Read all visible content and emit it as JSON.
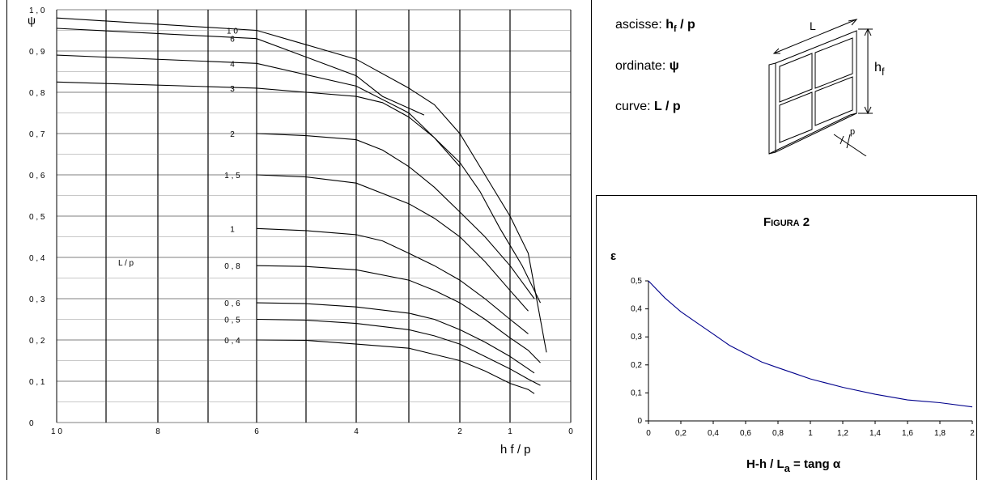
{
  "chart_data": [
    {
      "type": "line",
      "xlabel": "h f / p",
      "ylabel": "ψ",
      "x_tick_labels": [
        "1 0",
        "8",
        "6",
        "4",
        "2",
        "1",
        "0"
      ],
      "x_ticks": [
        10,
        8,
        6,
        4,
        2,
        1,
        0
      ],
      "y_tick_labels": [
        "0",
        "0 , 1",
        "0 , 2",
        "0 , 3",
        "0 , 4",
        "0 , 5",
        "0 , 6",
        "0 , 7",
        "0 , 8",
        "0 , 9",
        "1 , 0"
      ],
      "y_ticks": [
        0,
        0.1,
        0.2,
        0.3,
        0.4,
        0.5,
        0.6,
        0.7,
        0.8,
        0.9,
        1.0
      ],
      "ylim": [
        0,
        1.0
      ],
      "grid": true,
      "inner_label": "L / p",
      "series": [
        {
          "name": "1 0",
          "points": [
            [
              10,
              0.98
            ],
            [
              6,
              0.95
            ],
            [
              4,
              0.88
            ],
            [
              3,
              0.81
            ],
            [
              2.5,
              0.77
            ],
            [
              2,
              0.7
            ],
            [
              1.5,
              0.6
            ],
            [
              1,
              0.5
            ],
            [
              0.7,
              0.41
            ],
            [
              0.4,
              0.17
            ]
          ]
        },
        {
          "name": "6",
          "points": [
            [
              10,
              0.955
            ],
            [
              6,
              0.93
            ],
            [
              4,
              0.84
            ],
            [
              3.5,
              0.79
            ],
            [
              2.7,
              0.745
            ]
          ]
        },
        {
          "name": "4",
          "points": [
            [
              10,
              0.89
            ],
            [
              6,
              0.87
            ],
            [
              4,
              0.815
            ],
            [
              3,
              0.75
            ],
            [
              2.5,
              0.69
            ],
            [
              2,
              0.63
            ],
            [
              1.6,
              0.56
            ],
            [
              1.2,
              0.47
            ],
            [
              0.8,
              0.38
            ],
            [
              0.5,
              0.29
            ]
          ]
        },
        {
          "name": "3",
          "points": [
            [
              10,
              0.825
            ],
            [
              6,
              0.81
            ],
            [
              5,
              0.8
            ],
            [
              4,
              0.79
            ],
            [
              3.5,
              0.775
            ],
            [
              3,
              0.74
            ],
            [
              2.5,
              0.69
            ],
            [
              2,
              0.62
            ]
          ]
        },
        {
          "name": "2",
          "points": [
            [
              6,
              0.7
            ],
            [
              5,
              0.695
            ],
            [
              4,
              0.685
            ],
            [
              3.5,
              0.66
            ],
            [
              3,
              0.62
            ],
            [
              2.5,
              0.57
            ],
            [
              2,
              0.51
            ],
            [
              1.5,
              0.45
            ],
            [
              1,
              0.38
            ],
            [
              0.6,
              0.3
            ]
          ]
        },
        {
          "name": "1 , 5",
          "points": [
            [
              6,
              0.6
            ],
            [
              5,
              0.595
            ],
            [
              4,
              0.58
            ],
            [
              3,
              0.53
            ],
            [
              2.5,
              0.495
            ],
            [
              2,
              0.45
            ],
            [
              1.5,
              0.39
            ],
            [
              1,
              0.32
            ],
            [
              0.7,
              0.27
            ]
          ]
        },
        {
          "name": "1",
          "points": [
            [
              6,
              0.47
            ],
            [
              5,
              0.465
            ],
            [
              4,
              0.455
            ],
            [
              3.5,
              0.44
            ],
            [
              3,
              0.41
            ],
            [
              2.5,
              0.38
            ],
            [
              2,
              0.345
            ],
            [
              1.5,
              0.3
            ],
            [
              1,
              0.25
            ],
            [
              0.7,
              0.215
            ]
          ]
        },
        {
          "name": "0 , 8",
          "points": [
            [
              6,
              0.38
            ],
            [
              5,
              0.378
            ],
            [
              4,
              0.37
            ],
            [
              3,
              0.345
            ],
            [
              2.5,
              0.32
            ],
            [
              2,
              0.29
            ],
            [
              1.5,
              0.25
            ],
            [
              1,
              0.205
            ],
            [
              0.7,
              0.175
            ],
            [
              0.5,
              0.145
            ]
          ]
        },
        {
          "name": "0 , 6",
          "points": [
            [
              6,
              0.29
            ],
            [
              5,
              0.288
            ],
            [
              4,
              0.28
            ],
            [
              3,
              0.265
            ],
            [
              2.5,
              0.25
            ],
            [
              2,
              0.225
            ],
            [
              1.5,
              0.195
            ],
            [
              1,
              0.16
            ],
            [
              0.8,
              0.14
            ],
            [
              0.6,
              0.12
            ]
          ]
        },
        {
          "name": "0 , 5",
          "points": [
            [
              6,
              0.25
            ],
            [
              5,
              0.248
            ],
            [
              4,
              0.24
            ],
            [
              3,
              0.225
            ],
            [
              2.5,
              0.21
            ],
            [
              2,
              0.19
            ],
            [
              1.5,
              0.16
            ],
            [
              1,
              0.13
            ],
            [
              0.7,
              0.105
            ],
            [
              0.5,
              0.09
            ]
          ]
        },
        {
          "name": "0 , 4",
          "points": [
            [
              6,
              0.2
            ],
            [
              5,
              0.199
            ],
            [
              4,
              0.19
            ],
            [
              3,
              0.18
            ],
            [
              2.5,
              0.165
            ],
            [
              2,
              0.15
            ],
            [
              1.5,
              0.125
            ],
            [
              1,
              0.095
            ],
            [
              0.7,
              0.08
            ],
            [
              0.6,
              0.07
            ]
          ]
        }
      ]
    },
    {
      "type": "line",
      "title": "Figura 2",
      "ylabel": "ε",
      "xlabel_text": "H-h / L",
      "xlabel_sub": "a",
      "xlabel_tail": " = tang α",
      "xlim": [
        0,
        2
      ],
      "ylim": [
        0,
        0.5
      ],
      "x_tick_labels": [
        "0",
        "0,2",
        "0,4",
        "0,6",
        "0,8",
        "1",
        "1,2",
        "1,4",
        "1,6",
        "1,8",
        "2"
      ],
      "y_tick_labels": [
        "0",
        "0,1",
        "0,2",
        "0,3",
        "0,4",
        "0,5"
      ],
      "series": [
        {
          "color": "#00008b",
          "x": [
            0,
            0.1,
            0.2,
            0.3,
            0.4,
            0.5,
            0.6,
            0.7,
            0.8,
            0.9,
            1.0,
            1.2,
            1.4,
            1.6,
            1.8,
            2.0
          ],
          "y": [
            0.5,
            0.44,
            0.39,
            0.35,
            0.31,
            0.27,
            0.24,
            0.21,
            0.19,
            0.17,
            0.15,
            0.12,
            0.095,
            0.075,
            0.065,
            0.05
          ]
        }
      ]
    }
  ],
  "legend": {
    "abscissa_label": "ascisse: ",
    "abscissa_value": "h",
    "abscissa_sub": "f",
    "abscissa_tail": " / p",
    "ordinate_label": "ordinate: ",
    "ordinate_value": "ψ",
    "curve_label": "curve: ",
    "curve_value": "L / p"
  },
  "window_diagram": {
    "label_length": "L",
    "label_height": "h",
    "label_height_sub": "f",
    "label_depth": "p"
  }
}
